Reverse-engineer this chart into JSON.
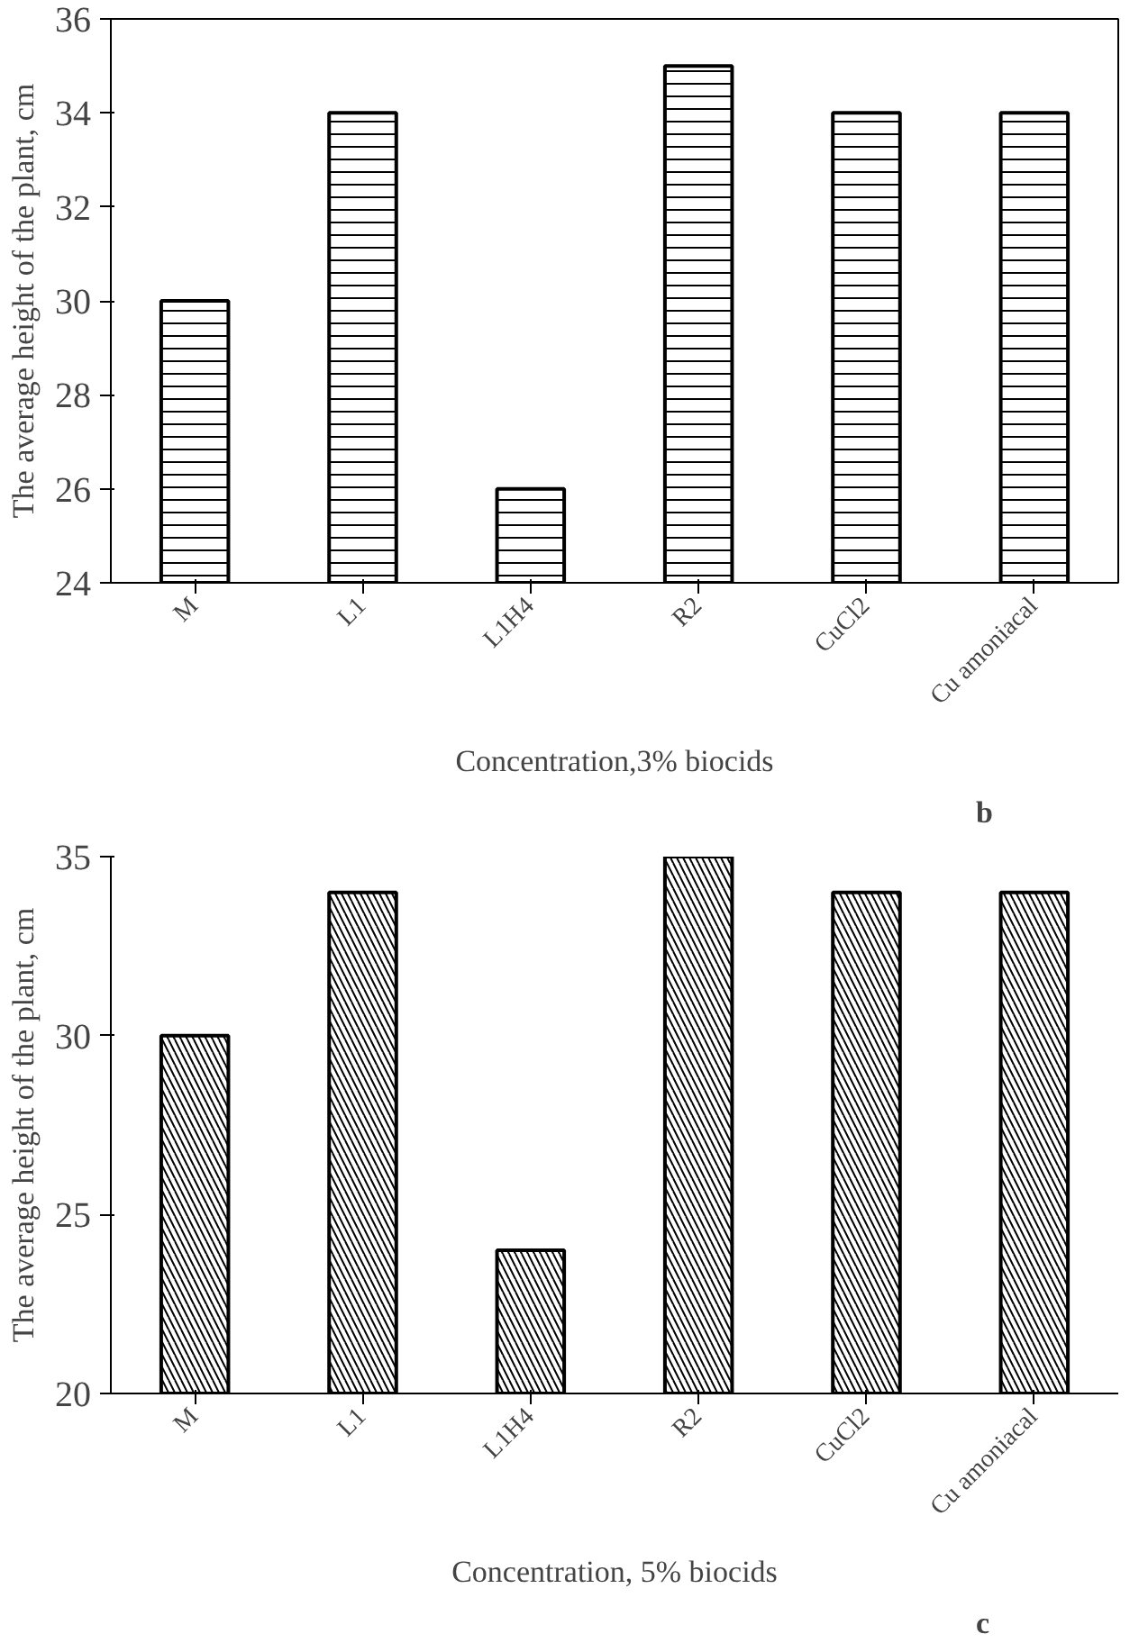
{
  "chart_data": [
    {
      "type": "bar",
      "categories": [
        "M",
        "L1",
        "L1H4",
        "R2",
        "CuCl2",
        "Cu amoniacal"
      ],
      "values": [
        30,
        34,
        26,
        35,
        34,
        34
      ],
      "color": "#000000",
      "ylim": [
        24,
        36
      ],
      "yticks": [
        24,
        26,
        28,
        30,
        32,
        34,
        36
      ],
      "ylabel": "The average height of the plant, cm",
      "xlabel": "Concentration,3% biocids",
      "annotations": [
        "b"
      ],
      "grid": false
    },
    {
      "type": "bar",
      "categories": [
        "M",
        "L1",
        "L1H4",
        "R2",
        "CuCl2",
        "Cu amoniacal"
      ],
      "values": [
        30,
        34,
        24,
        35,
        34,
        34
      ],
      "color": "#000000",
      "ylim": [
        20,
        35
      ],
      "yticks": [
        20,
        25,
        30,
        35
      ],
      "ylabel": "The average height of the plant, cm",
      "xlabel": "Concentration, 5% biocids",
      "annotations": [
        "c"
      ],
      "grid": false
    }
  ]
}
